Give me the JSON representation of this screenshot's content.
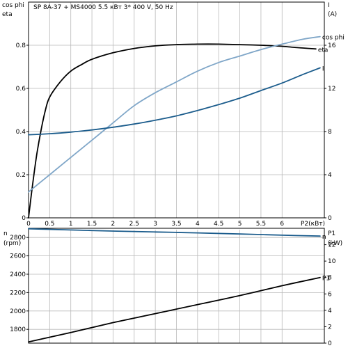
{
  "chart_data": [
    {
      "type": "line",
      "title": "SP 8A-37 + MS4000    5.5 кВт   3* 400 V, 50 Hz",
      "xlabel": "P2(кВт)",
      "xlim": [
        0,
        7.0
      ],
      "xticks": [
        0,
        0.5,
        1,
        1.5,
        2,
        2.5,
        3,
        3.5,
        4,
        4.5,
        5,
        5.5,
        6
      ],
      "xtick_labels": [
        "0",
        "0.5",
        "1",
        "1.5",
        "2",
        "2.5",
        "3",
        "3.5",
        "4",
        "4.5",
        "5",
        "5.5",
        "6"
      ],
      "left_axis": {
        "label_lines": [
          "cos phi",
          "eta"
        ],
        "lim": [
          0,
          1
        ],
        "ticks": [
          0,
          0.2,
          0.4,
          0.6,
          0.8
        ],
        "tick_labels": [
          "0",
          "0.2",
          "0.4",
          "0.6",
          "0.8"
        ]
      },
      "right_axis": {
        "label_lines": [
          "I",
          "(A)"
        ],
        "lim": [
          0,
          20
        ],
        "ticks": [
          0,
          4,
          8,
          12,
          16
        ],
        "tick_labels": [
          "0",
          "4",
          "8",
          "12",
          "16"
        ]
      },
      "grid": true,
      "series": [
        {
          "name": "eta",
          "axis": "left",
          "color": "#000000",
          "x": [
            0,
            0.1,
            0.2,
            0.3,
            0.4,
            0.5,
            0.75,
            1.0,
            1.25,
            1.5,
            2.0,
            2.5,
            3.0,
            3.5,
            4.0,
            4.5,
            5.0,
            5.5,
            6.0,
            6.3,
            6.5,
            6.8
          ],
          "y": [
            0,
            0.16,
            0.3,
            0.41,
            0.5,
            0.56,
            0.63,
            0.68,
            0.71,
            0.735,
            0.765,
            0.785,
            0.797,
            0.803,
            0.805,
            0.805,
            0.803,
            0.8,
            0.795,
            0.79,
            0.787,
            0.783
          ]
        },
        {
          "name": "cos phi",
          "axis": "left",
          "color": "#7fa6c8",
          "x": [
            0,
            0.5,
            1.0,
            1.5,
            2.0,
            2.5,
            3.0,
            3.5,
            4.0,
            4.5,
            5.0,
            5.5,
            6.0,
            6.5,
            6.9
          ],
          "y": [
            0.12,
            0.2,
            0.28,
            0.36,
            0.44,
            0.52,
            0.58,
            0.63,
            0.68,
            0.72,
            0.75,
            0.78,
            0.805,
            0.828,
            0.84
          ]
        },
        {
          "name": "I",
          "axis": "right",
          "color": "#1b5c8c",
          "x": [
            0,
            0.5,
            1.0,
            1.5,
            2.0,
            2.5,
            3.0,
            3.5,
            4.0,
            4.5,
            5.0,
            5.5,
            6.0,
            6.5,
            6.9
          ],
          "y": [
            7.7,
            7.8,
            7.95,
            8.15,
            8.4,
            8.7,
            9.05,
            9.45,
            9.95,
            10.5,
            11.1,
            11.8,
            12.5,
            13.3,
            13.9
          ]
        }
      ]
    },
    {
      "type": "line",
      "xlim": [
        0,
        7.0
      ],
      "xticks": [
        0,
        0.5,
        1,
        1.5,
        2,
        2.5,
        3,
        3.5,
        4,
        4.5,
        5,
        5.5,
        6
      ],
      "left_axis": {
        "label_lines": [
          "n",
          "(rpm)"
        ],
        "lim": [
          1650,
          2900
        ],
        "ticks": [
          1800,
          2000,
          2200,
          2400,
          2600,
          2800
        ],
        "tick_labels": [
          "1800",
          "2000",
          "2200",
          "2400",
          "2600",
          "2800"
        ]
      },
      "right_axis": {
        "label_lines": [
          "P1",
          "(kW)"
        ],
        "lim": [
          0,
          14
        ],
        "ticks": [
          0,
          2,
          4,
          6,
          8,
          10,
          12
        ],
        "tick_labels": [
          "0",
          "2",
          "4",
          "6",
          "8",
          "10",
          "12"
        ]
      },
      "grid": true,
      "series": [
        {
          "name": "n",
          "axis": "left",
          "color": "#1b5c8c",
          "x": [
            0,
            1,
            2,
            3,
            4,
            5,
            6,
            6.9
          ],
          "y": [
            2895,
            2882,
            2870,
            2860,
            2850,
            2838,
            2825,
            2815
          ]
        },
        {
          "name": "P1",
          "axis": "right",
          "color": "#000000",
          "x": [
            0,
            1,
            2,
            3,
            4,
            5,
            6,
            6.9
          ],
          "y": [
            0.15,
            1.3,
            2.5,
            3.6,
            4.7,
            5.8,
            7.0,
            8.0
          ]
        }
      ]
    }
  ]
}
